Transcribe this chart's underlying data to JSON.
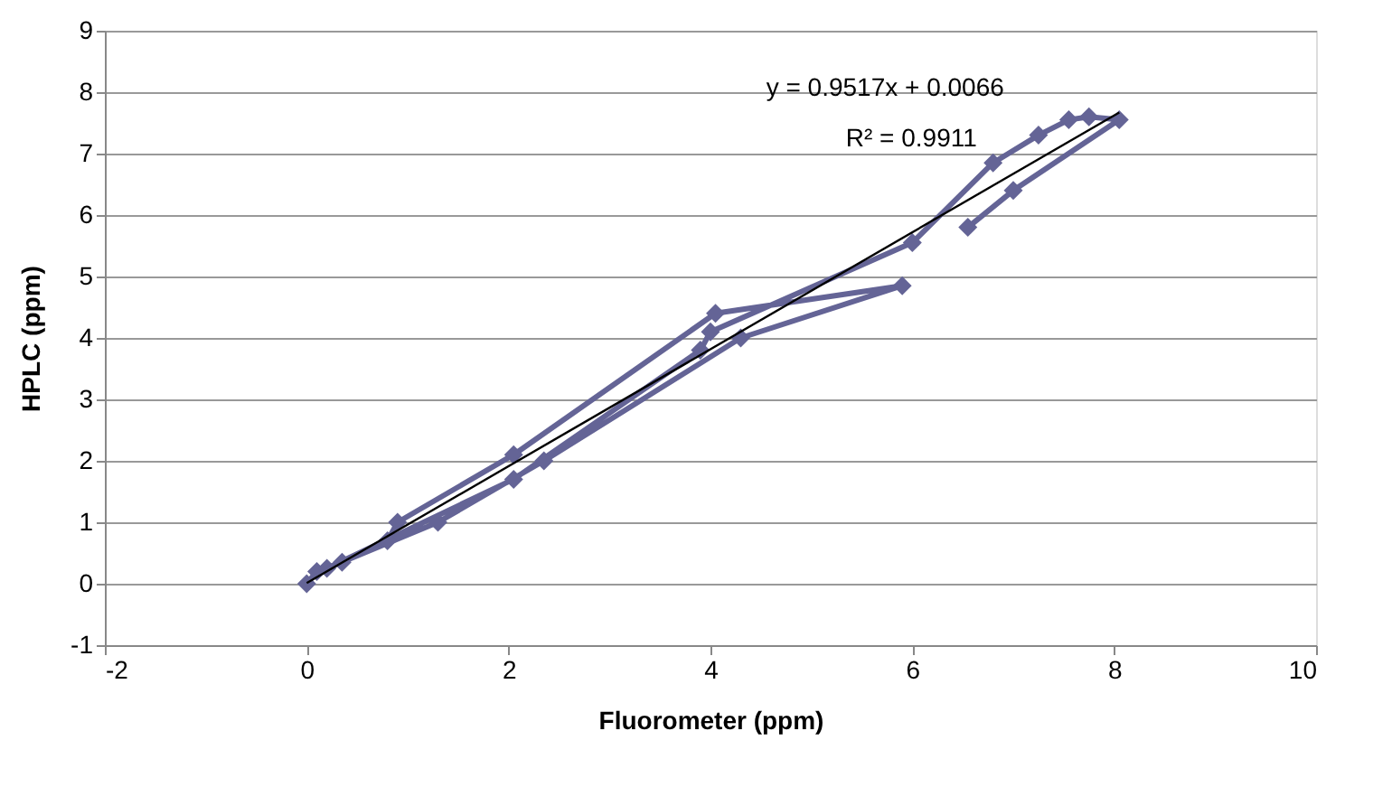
{
  "chart_data": {
    "type": "scatter",
    "xlabel": "Fluorometer (ppm)",
    "ylabel": "HPLC (ppm)",
    "xlim": [
      -2,
      10
    ],
    "xticks": [
      -2,
      0,
      2,
      4,
      6,
      8,
      10
    ],
    "ylim": [
      -1,
      9
    ],
    "yticks": [
      -1,
      0,
      1,
      2,
      3,
      4,
      5,
      6,
      7,
      8,
      9
    ],
    "grid": "y",
    "marker": "diamond",
    "line_style": "solid",
    "annotations": [
      "y = 0.9517x + 0.0066",
      "R² = 0.9911"
    ],
    "series": [
      {
        "type": "line",
        "color": "#646496",
        "x": [
          0,
          0.1,
          0.35,
          0.8,
          0.9,
          2.05,
          4.05,
          5.9,
          4.3,
          2.35,
          1.3,
          0.2,
          2.05,
          3.9,
          4.0,
          6.0,
          6.8,
          7.25,
          7.55,
          7.75,
          8.05,
          7.0,
          6.55
        ],
        "values": [
          0,
          0.2,
          0.35,
          0.7,
          1.0,
          2.1,
          4.4,
          4.85,
          4.0,
          2.0,
          1.0,
          0.25,
          1.7,
          3.8,
          4.1,
          5.55,
          6.85,
          7.3,
          7.55,
          7.6,
          7.55,
          6.4,
          5.8
        ]
      },
      {
        "type": "line",
        "color": "#000000",
        "marker": "none",
        "x": [
          0,
          8.05
        ],
        "values": [
          0.01,
          7.67
        ]
      }
    ]
  }
}
